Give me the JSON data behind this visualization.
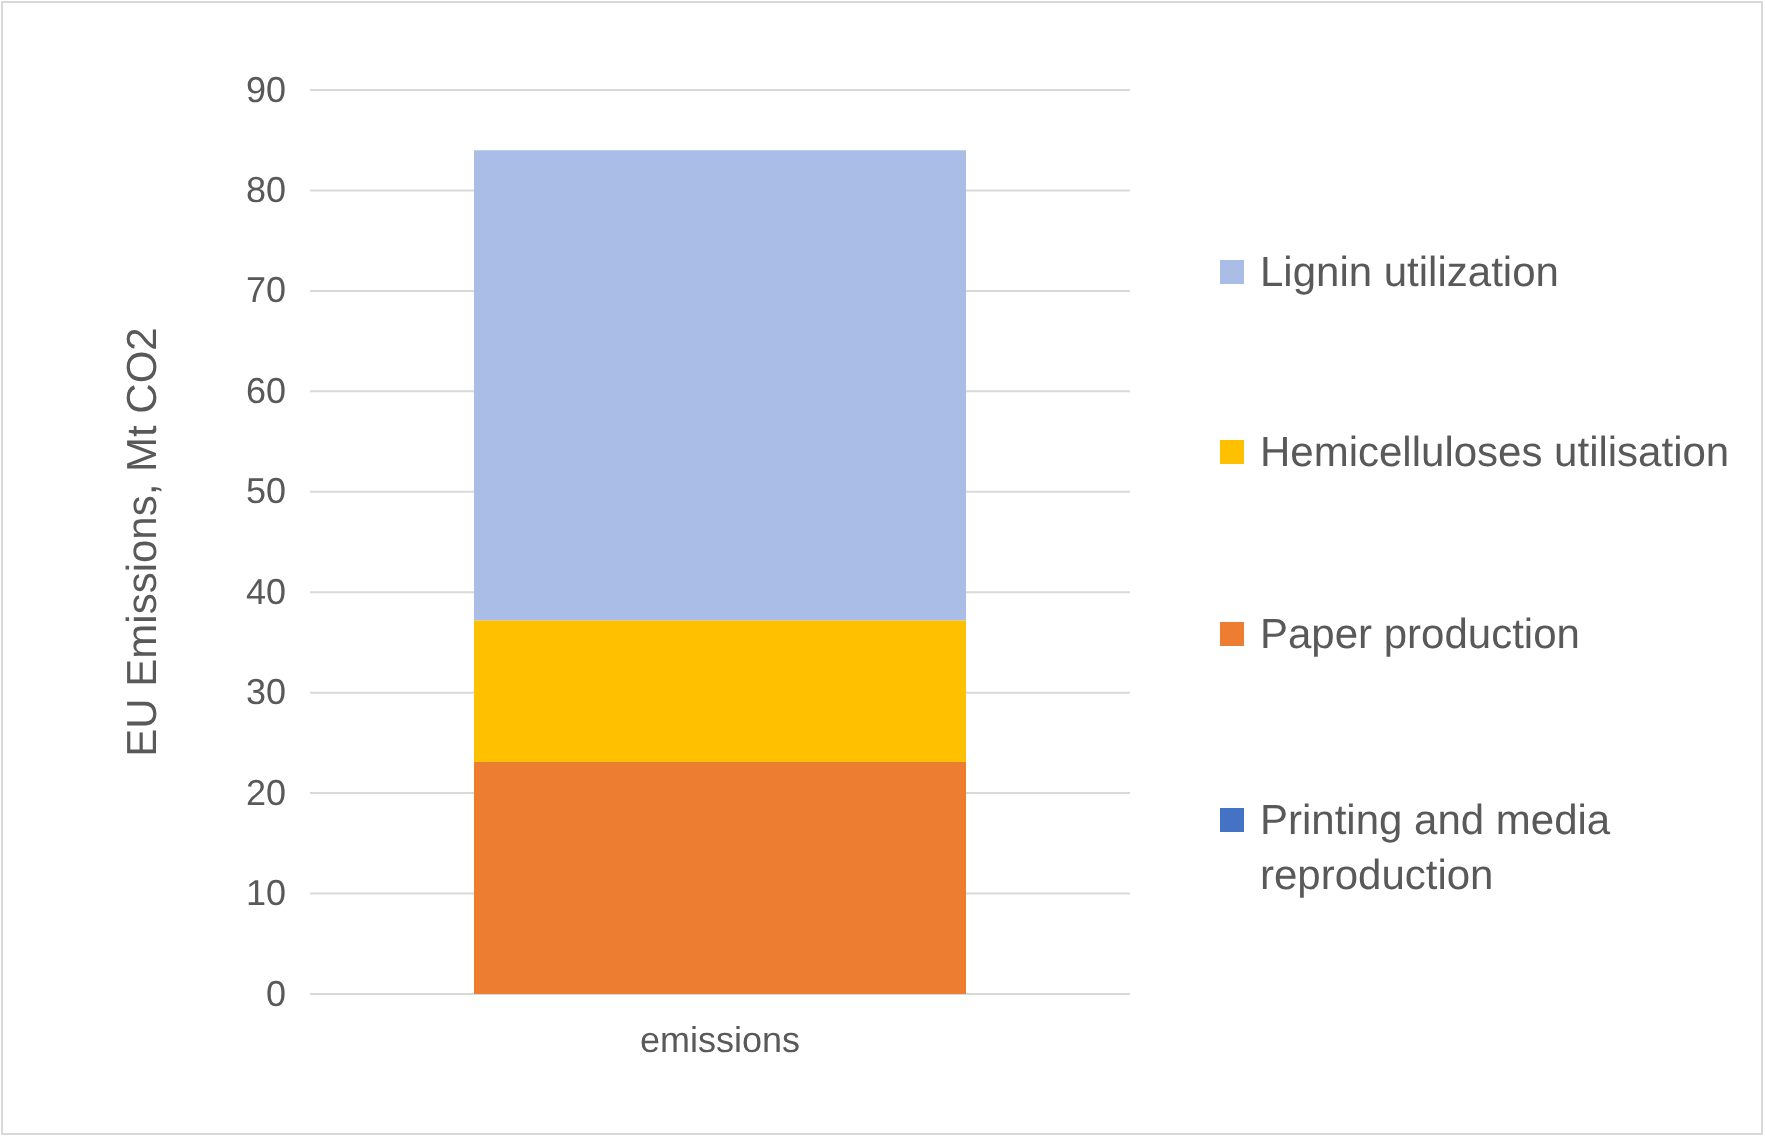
{
  "chart_data": {
    "type": "bar",
    "stacked": true,
    "categories": [
      "emissions"
    ],
    "ylabel": "EU Emissions, Mt CO2",
    "ylim": [
      0,
      90
    ],
    "yticks": [
      0,
      10,
      20,
      30,
      40,
      50,
      60,
      70,
      80,
      90
    ],
    "grid": "y",
    "legend": "right",
    "series": [
      {
        "name": "Printing and media reproduction",
        "color": "#4472c4",
        "values": [
          0
        ]
      },
      {
        "name": "Paper production",
        "color": "#ed7d31",
        "values": [
          23.1
        ]
      },
      {
        "name": "Hemicelluloses utilisation",
        "color": "#ffc000",
        "values": [
          14.1
        ]
      },
      {
        "name": "Lignin utilization",
        "color": "#a9bde6",
        "values": [
          46.8
        ]
      }
    ]
  }
}
